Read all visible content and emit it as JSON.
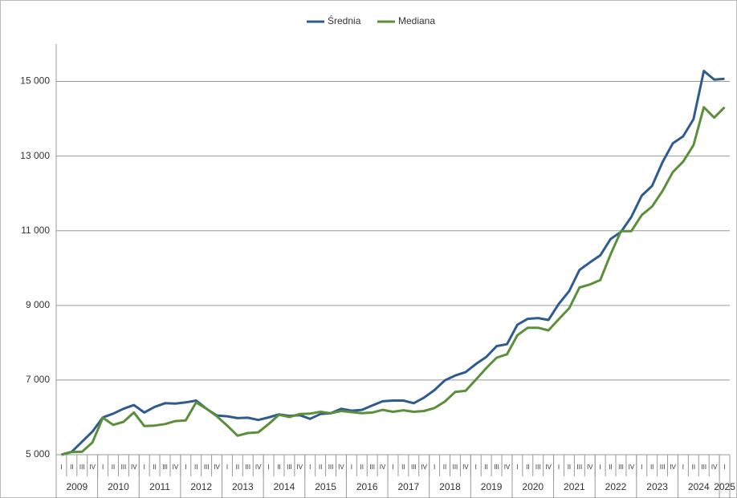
{
  "chart_data": {
    "type": "line",
    "categories": [
      "I",
      "II",
      "III",
      "IV",
      "I",
      "II",
      "III",
      "IV",
      "I",
      "II",
      "III",
      "IV",
      "I",
      "II",
      "III",
      "IV",
      "I",
      "II",
      "III",
      "IV",
      "I",
      "II",
      "III",
      "IV",
      "I",
      "II",
      "III",
      "IV",
      "I",
      "II",
      "III",
      "IV",
      "I",
      "II",
      "III",
      "IV",
      "I",
      "II",
      "III",
      "IV",
      "I",
      "II",
      "III",
      "IV",
      "I",
      "II",
      "III",
      "IV",
      "I",
      "II",
      "III",
      "IV",
      "I",
      "II",
      "III",
      "IV",
      "I",
      "II",
      "III",
      "IV",
      "I",
      "II",
      "III",
      "IV",
      "I"
    ],
    "years": [
      "2009",
      "2010",
      "2011",
      "2012",
      "2013",
      "2014",
      "2015",
      "2016",
      "2017",
      "2018",
      "2019",
      "2020",
      "2021",
      "2022",
      "2023",
      "2024",
      "2025"
    ],
    "series": [
      {
        "name": "Średnia",
        "color": "#2f5b8f",
        "values": [
          5000,
          5080,
          5350,
          5620,
          6000,
          6100,
          6230,
          6330,
          6130,
          6280,
          6380,
          6370,
          6400,
          6450,
          6230,
          6050,
          6030,
          5980,
          5990,
          5930,
          6000,
          6080,
          6040,
          6060,
          5960,
          6090,
          6110,
          6230,
          6180,
          6200,
          6320,
          6430,
          6450,
          6450,
          6380,
          6530,
          6730,
          6990,
          7120,
          7210,
          7430,
          7620,
          7910,
          7960,
          8480,
          8640,
          8660,
          8610,
          9040,
          9380,
          9950,
          10150,
          10340,
          10780,
          10970,
          11370,
          11940,
          12200,
          12830,
          13340,
          13530,
          13990,
          15280,
          15050,
          15070
        ]
      },
      {
        "name": "Mediana",
        "color": "#5b8f3a",
        "values": [
          5000,
          5070,
          5080,
          5330,
          5990,
          5800,
          5880,
          6130,
          5770,
          5780,
          5820,
          5900,
          5920,
          6400,
          6230,
          6030,
          5780,
          5510,
          5580,
          5600,
          5820,
          6070,
          6010,
          6090,
          6100,
          6150,
          6110,
          6170,
          6140,
          6110,
          6130,
          6200,
          6150,
          6190,
          6150,
          6170,
          6250,
          6420,
          6680,
          6710,
          7010,
          7320,
          7600,
          7690,
          8200,
          8400,
          8400,
          8330,
          8630,
          8920,
          9480,
          9560,
          9680,
          10370,
          10990,
          10990,
          11420,
          11650,
          12060,
          12570,
          12850,
          13290,
          14310,
          14030,
          14310
        ]
      }
    ],
    "ylim": [
      5000,
      16000
    ],
    "yticks": [
      {
        "value": 5000,
        "label": "5 000"
      },
      {
        "value": 7000,
        "label": "7 000"
      },
      {
        "value": 9000,
        "label": "9 000"
      },
      {
        "value": 11000,
        "label": "11 000"
      },
      {
        "value": 13000,
        "label": "13 000"
      },
      {
        "value": 15000,
        "label": "15 000"
      }
    ],
    "grid": true,
    "legend": "top"
  }
}
